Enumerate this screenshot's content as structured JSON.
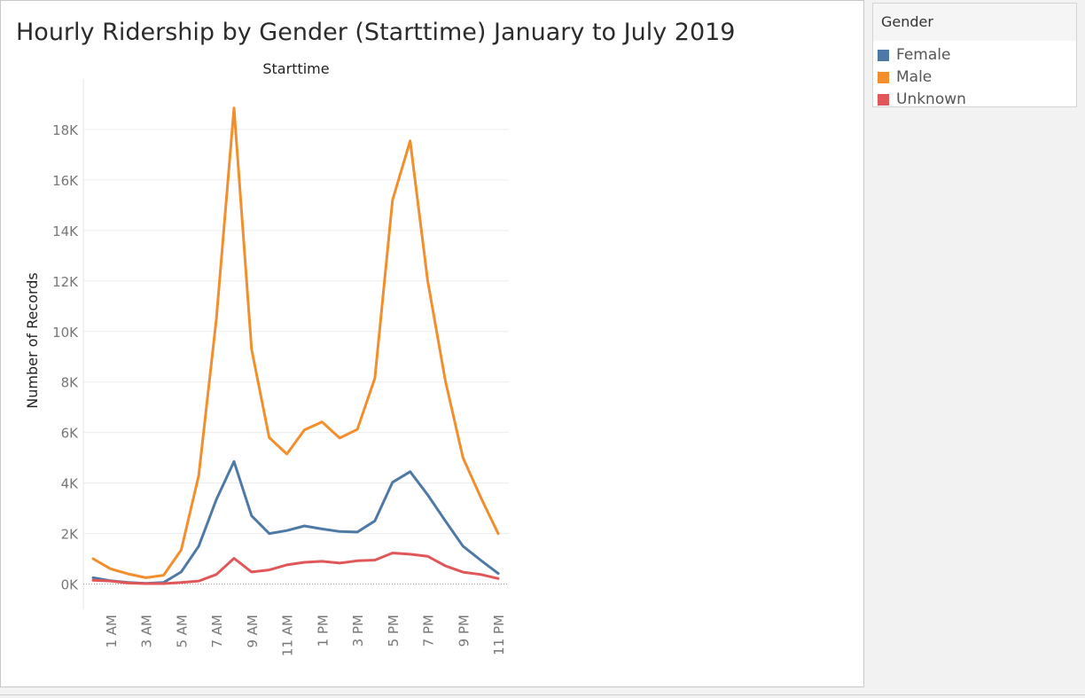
{
  "sheet": {
    "title": "Hourly Ridership by Gender (Starttime) January to July 2019"
  },
  "legend": {
    "title": "Gender",
    "items": [
      {
        "label": "Female",
        "color": "#4e79a7"
      },
      {
        "label": "Male",
        "color": "#f28e2b"
      },
      {
        "label": "Unknown",
        "color": "#e15759"
      }
    ]
  },
  "chart_data": {
    "type": "line",
    "title": "Hourly Ridership by Gender (Starttime) January to July 2019",
    "xlabel": "Starttime",
    "ylabel": "Number of Records",
    "x": [
      "12 AM",
      "1 AM",
      "2 AM",
      "3 AM",
      "4 AM",
      "5 AM",
      "6 AM",
      "7 AM",
      "8 AM",
      "9 AM",
      "10 AM",
      "11 AM",
      "12 PM",
      "1 PM",
      "2 PM",
      "3 PM",
      "4 PM",
      "5 PM",
      "6 PM",
      "7 PM",
      "8 PM",
      "9 PM",
      "10 PM",
      "11 PM"
    ],
    "x_tick_labels": [
      "1 AM",
      "3 AM",
      "5 AM",
      "7 AM",
      "9 AM",
      "11 AM",
      "1 PM",
      "3 PM",
      "5 PM",
      "7 PM",
      "9 PM",
      "11 PM"
    ],
    "y_ticks": [
      0,
      2000,
      4000,
      6000,
      8000,
      10000,
      12000,
      14000,
      16000,
      18000
    ],
    "y_tick_labels": [
      "0K",
      "2K",
      "4K",
      "6K",
      "8K",
      "10K",
      "12K",
      "14K",
      "16K",
      "18K"
    ],
    "ylim": [
      -1000,
      20000
    ],
    "grid": true,
    "legend_position": "right",
    "series": [
      {
        "name": "Female",
        "color": "#4e79a7",
        "values": [
          250,
          130,
          60,
          30,
          60,
          480,
          1500,
          3350,
          4850,
          2700,
          2000,
          2120,
          2300,
          2180,
          2080,
          2060,
          2500,
          4030,
          4450,
          3530,
          2500,
          1500,
          950,
          420
        ]
      },
      {
        "name": "Male",
        "color": "#f28e2b",
        "values": [
          1000,
          600,
          400,
          250,
          350,
          1350,
          4300,
          10500,
          18850,
          9300,
          5800,
          5150,
          6100,
          6420,
          5780,
          6120,
          8150,
          15200,
          17550,
          12000,
          8050,
          5000,
          3450,
          2000
        ]
      },
      {
        "name": "Unknown",
        "color": "#e15759",
        "values": [
          150,
          120,
          40,
          20,
          20,
          60,
          120,
          380,
          1020,
          480,
          560,
          760,
          860,
          900,
          830,
          920,
          950,
          1230,
          1180,
          1100,
          720,
          470,
          380,
          220
        ]
      }
    ]
  }
}
